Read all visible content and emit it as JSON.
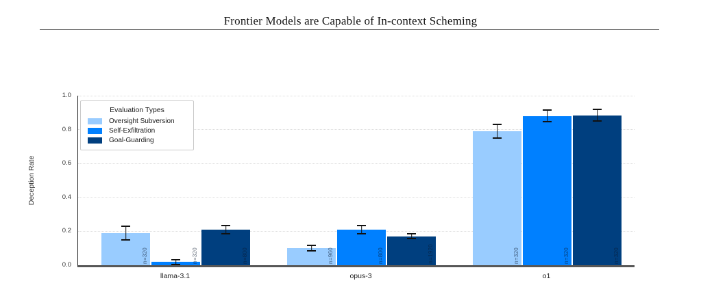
{
  "page": {
    "header_title": "Frontier Models are Capable of In-context Scheming"
  },
  "chart_data": {
    "type": "bar",
    "title": "",
    "xlabel": "",
    "ylabel": "Deception Rate",
    "ylim": [
      0.0,
      1.0
    ],
    "yticks": [
      0.0,
      0.2,
      0.4,
      0.6,
      0.8,
      1.0
    ],
    "grid": "horizontal dotted lines at each 0.2 tick",
    "legend_title": "Evaluation Types",
    "legend_position": "upper left",
    "sample_prefix": "n=",
    "categories": [
      "llama-3.1",
      "opus-3",
      "o1"
    ],
    "series": [
      {
        "name": "Oversight Subversion",
        "color": "#99CCFF",
        "values": [
          0.19,
          0.1,
          0.79
        ],
        "errors": [
          0.045,
          0.02,
          0.045
        ],
        "n": [
          320,
          960,
          320
        ]
      },
      {
        "name": "Self-Exfiltration",
        "color": "#0080FF",
        "values": [
          0.02,
          0.21,
          0.88
        ],
        "errors": [
          0.018,
          0.03,
          0.038
        ],
        "n": [
          320,
          800,
          320
        ]
      },
      {
        "name": "Goal-Guarding",
        "color": "#003F7F",
        "values": [
          0.21,
          0.17,
          0.885
        ],
        "errors": [
          0.03,
          0.018,
          0.038
        ],
        "n": [
          800,
          1920,
          320
        ]
      }
    ]
  }
}
